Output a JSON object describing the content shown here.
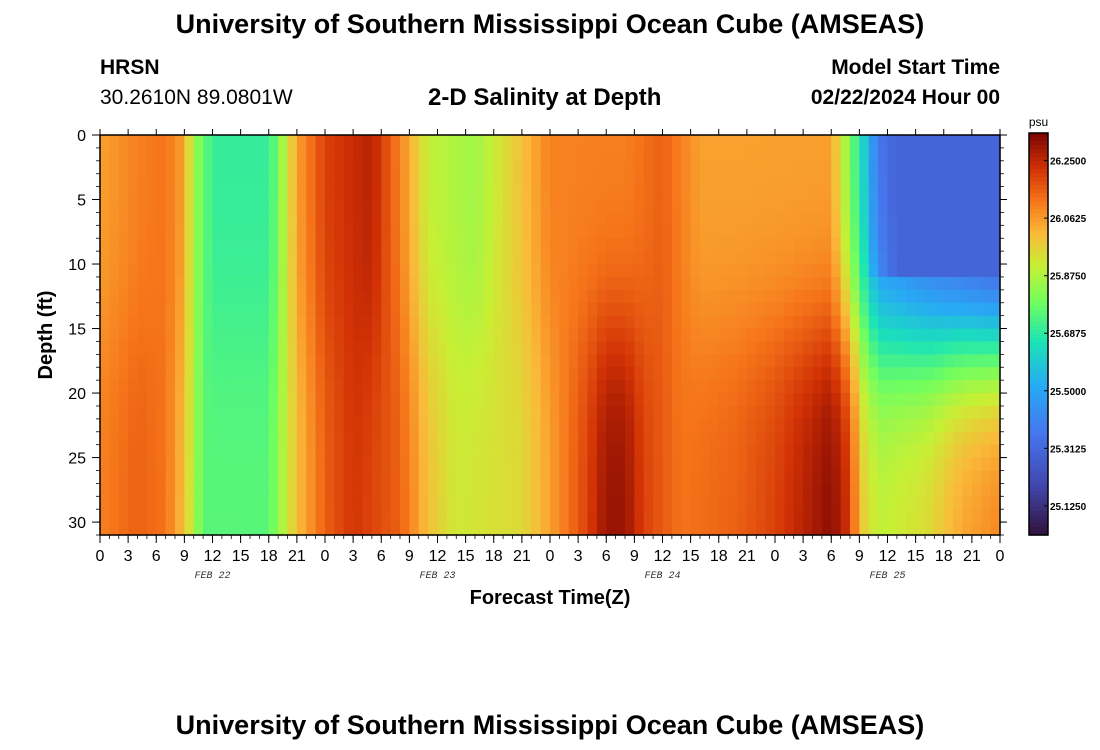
{
  "header": {
    "title": "University of Southern Mississippi Ocean Cube (AMSEAS)",
    "station": "HRSN",
    "coords": "30.2610N  89.0801W",
    "plot_title": "2-D Salinity at Depth",
    "model_label": "Model Start Time",
    "model_time": "02/22/2024 Hour 00"
  },
  "footer": {
    "title": "University of Southern Mississippi Ocean Cube (AMSEAS)"
  },
  "chart_data": {
    "type": "heatmap",
    "title": "2-D Salinity at Depth",
    "xlabel": "Forecast Time(Z)",
    "ylabel": "Depth (ft)",
    "x_hours_range": [
      0,
      96
    ],
    "y_range_ft": [
      0,
      31
    ],
    "x_tick_labels": [
      "0",
      "3",
      "6",
      "9",
      "12",
      "15",
      "18",
      "21",
      "0",
      "3",
      "6",
      "9",
      "12",
      "15",
      "18",
      "21",
      "0",
      "3",
      "6",
      "9",
      "12",
      "15",
      "18",
      "21",
      "0",
      "3",
      "6",
      "9",
      "12",
      "15",
      "18",
      "21",
      "0"
    ],
    "y_tick_values": [
      0,
      5,
      10,
      15,
      20,
      25,
      30
    ],
    "date_labels": [
      {
        "label": "FEB 22",
        "hour": 12
      },
      {
        "label": "FEB 23",
        "hour": 36
      },
      {
        "label": "FEB 24",
        "hour": 60
      },
      {
        "label": "FEB 25",
        "hour": 84
      }
    ],
    "colorbar": {
      "unit": "psu",
      "range": [
        25.03,
        26.34
      ],
      "tick_labels": [
        "26.2500",
        "26.0625",
        "25.8750",
        "25.6875",
        "25.5000",
        "25.3125",
        "25.1250"
      ],
      "tick_values": [
        26.25,
        26.0625,
        25.875,
        25.6875,
        25.5,
        25.3125,
        25.125
      ]
    },
    "surface_profile_psu": [
      {
        "hour": 0,
        "value": 26.05
      },
      {
        "hour": 4,
        "value": 26.1
      },
      {
        "hour": 7,
        "value": 26.12
      },
      {
        "hour": 9,
        "value": 26.05
      },
      {
        "hour": 10,
        "value": 25.85
      },
      {
        "hour": 12,
        "value": 25.7
      },
      {
        "hour": 18,
        "value": 25.7
      },
      {
        "hour": 19,
        "value": 25.8
      },
      {
        "hour": 21,
        "value": 26.05
      },
      {
        "hour": 24,
        "value": 26.2
      },
      {
        "hour": 29,
        "value": 26.26
      },
      {
        "hour": 32,
        "value": 26.1
      },
      {
        "hour": 35,
        "value": 25.9
      },
      {
        "hour": 40,
        "value": 25.85
      },
      {
        "hour": 45,
        "value": 26.0
      },
      {
        "hour": 48,
        "value": 26.1
      },
      {
        "hour": 56,
        "value": 26.1
      },
      {
        "hour": 60,
        "value": 26.15
      },
      {
        "hour": 64,
        "value": 26.05
      },
      {
        "hour": 72,
        "value": 26.05
      },
      {
        "hour": 78,
        "value": 26.05
      },
      {
        "hour": 80,
        "value": 25.8
      },
      {
        "hour": 83,
        "value": 25.4
      },
      {
        "hour": 90,
        "value": 25.25
      },
      {
        "hour": 96,
        "value": 25.15
      }
    ],
    "bottom_profile_psu": [
      {
        "hour": 0,
        "value": 26.1
      },
      {
        "hour": 4,
        "value": 26.15
      },
      {
        "hour": 7,
        "value": 26.12
      },
      {
        "hour": 9,
        "value": 26.0
      },
      {
        "hour": 11,
        "value": 25.75
      },
      {
        "hour": 18,
        "value": 25.75
      },
      {
        "hour": 21,
        "value": 26.0
      },
      {
        "hour": 24,
        "value": 26.15
      },
      {
        "hour": 27,
        "value": 26.22
      },
      {
        "hour": 32,
        "value": 26.15
      },
      {
        "hour": 35,
        "value": 26.0
      },
      {
        "hour": 38,
        "value": 25.92
      },
      {
        "hour": 45,
        "value": 25.95
      },
      {
        "hour": 48,
        "value": 26.05
      },
      {
        "hour": 52,
        "value": 26.2
      },
      {
        "hour": 54,
        "value": 26.3
      },
      {
        "hour": 56,
        "value": 26.3
      },
      {
        "hour": 58,
        "value": 26.2
      },
      {
        "hour": 62,
        "value": 26.12
      },
      {
        "hour": 68,
        "value": 26.15
      },
      {
        "hour": 72,
        "value": 26.2
      },
      {
        "hour": 78,
        "value": 26.32
      },
      {
        "hour": 80,
        "value": 26.22
      },
      {
        "hour": 81,
        "value": 26.0
      },
      {
        "hour": 83,
        "value": 25.9
      },
      {
        "hour": 88,
        "value": 25.95
      },
      {
        "hour": 92,
        "value": 26.05
      },
      {
        "hour": 96,
        "value": 26.1
      }
    ],
    "cold_corner": {
      "hour_start": 82,
      "depth_end_ft": 10.5,
      "value": 25.3
    }
  }
}
